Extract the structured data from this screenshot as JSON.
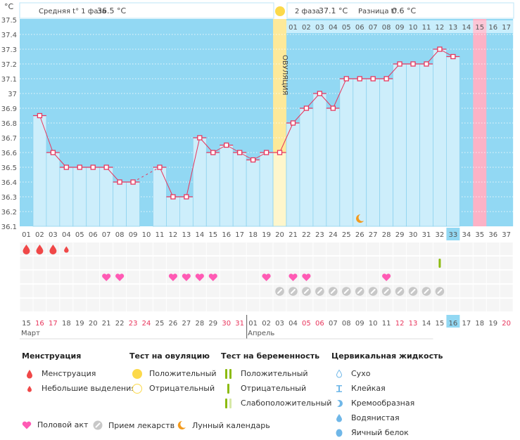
{
  "unit_label": "°C",
  "header": {
    "phase1_label": "Средняя t° 1 фаза",
    "phase1_value": "36.5 °C",
    "phase2_label": "2 фаза",
    "phase2_value": "37.1 °C",
    "diff_label": "Разница t°",
    "diff_value": "0.6 °C",
    "ovulation_label": "ОВУЛЯЦИЯ"
  },
  "chart_data": {
    "type": "line",
    "title": "Базальная температура",
    "ylabel": "°C",
    "ylim": [
      36.1,
      37.5
    ],
    "yticks": [
      "37.5",
      "37.4",
      "37.3",
      "37.2",
      "37.1",
      "37",
      "36.9",
      "36.8",
      "36.7",
      "36.6",
      "36.5",
      "36.4",
      "36.3",
      "36.2",
      "36.1"
    ],
    "cycle_days": [
      "01",
      "02",
      "03",
      "04",
      "05",
      "06",
      "07",
      "08",
      "09",
      "10",
      "11",
      "12",
      "13",
      "14",
      "15",
      "16",
      "17",
      "18",
      "19",
      "20",
      "21",
      "22",
      "23",
      "24",
      "25",
      "26",
      "27",
      "28",
      "29",
      "30",
      "31",
      "32",
      "33",
      "34",
      "35",
      "36",
      "37"
    ],
    "temperatures": [
      null,
      36.85,
      36.6,
      36.5,
      36.5,
      36.5,
      36.5,
      36.4,
      36.4,
      null,
      36.5,
      36.3,
      36.3,
      36.7,
      36.6,
      36.65,
      36.6,
      36.55,
      36.6,
      36.6,
      36.8,
      36.9,
      37.0,
      36.9,
      37.1,
      37.1,
      37.1,
      37.1,
      37.2,
      37.2,
      37.2,
      37.3,
      37.25,
      null,
      null,
      null,
      null
    ],
    "ovulation_day": 20,
    "phase2_day_labels": [
      "01",
      "02",
      "03",
      "04",
      "05",
      "06",
      "07",
      "08",
      "09",
      "10",
      "11",
      "12",
      "13",
      "14",
      "15",
      "16",
      "17"
    ],
    "expected_period_day": 35,
    "current_day": 33,
    "moon_day": 26,
    "calendar_dates": [
      "15",
      "16",
      "17",
      "18",
      "19",
      "20",
      "21",
      "22",
      "23",
      "24",
      "25",
      "26",
      "27",
      "28",
      "29",
      "30",
      "31",
      "01",
      "02",
      "03",
      "04",
      "05",
      "06",
      "07",
      "08",
      "09",
      "10",
      "11",
      "12",
      "13",
      "14",
      "15",
      "16",
      "17",
      "18",
      "19",
      "20"
    ],
    "weekend_dates_idx": [
      1,
      2,
      8,
      9,
      15,
      16,
      21,
      22,
      28,
      29,
      36
    ],
    "months": [
      {
        "name": "Март",
        "start_idx": 0
      },
      {
        "name": "Апрель",
        "start_idx": 17
      }
    ],
    "menstruation": {
      "1": "full",
      "2": "full",
      "3": "full",
      "4": "light"
    },
    "pregnancy_test": {
      "32": "negative"
    },
    "intercourse_days": [
      7,
      8,
      12,
      13,
      14,
      15,
      19,
      21,
      22,
      28
    ],
    "medication_days": [
      20,
      21,
      22,
      23,
      24,
      25,
      26,
      27,
      28,
      29,
      30,
      31,
      32
    ]
  },
  "colors": {
    "bg_blue": "#92d8f3",
    "bar_fill": "#cdeefb",
    "line": "#e8355c",
    "ovulation": "#fde99a",
    "ovulation_low": "#fef6cc",
    "period": "#fcb2c6",
    "heart": "#ff5ab4",
    "drop": "#f04848",
    "pill": "#c8c8c8",
    "test": "#8cbb10",
    "moon": "#f39a1c"
  },
  "legend": {
    "menstruation": {
      "title": "Менструация",
      "items": [
        "Менструация",
        "Небольшие выделения"
      ]
    },
    "ovulation_test": {
      "title": "Тест на овуляцию",
      "items": [
        "Положительный",
        "Отрицательный"
      ]
    },
    "pregnancy_test": {
      "title": "Тест на беременность",
      "items": [
        "Положительный",
        "Отрицательный",
        "Слабоположительный"
      ]
    },
    "cervical": {
      "title": "Цервикальная жидкость",
      "items": [
        "Сухо",
        "Клейкая",
        "Кремообразная",
        "Водянистая",
        "Яичный белок"
      ]
    },
    "bottom": [
      "Половой акт",
      "Прием лекарств",
      "Лунный календарь"
    ]
  }
}
